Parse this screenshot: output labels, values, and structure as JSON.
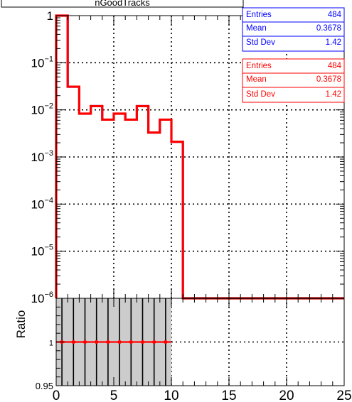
{
  "header_text": "nGoodTracks",
  "stats_boxes": [
    {
      "entries_label": "Entries",
      "entries_value": "484",
      "mean_label": "Mean",
      "mean_value": "0.3678",
      "std_label": "Std Dev",
      "std_value": "1.42",
      "color": "#0000ff"
    },
    {
      "entries_label": "Entries",
      "entries_value": "484",
      "mean_label": "Mean",
      "mean_value": "0.3678",
      "std_label": "Std Dev",
      "std_value": "1.42",
      "color": "#ff0000"
    }
  ],
  "chart_data": {
    "type": "histogram",
    "title": "nGoodTracks",
    "top_panel": {
      "yscale": "log",
      "ylim": [
        1e-06,
        1
      ],
      "xlim": [
        0,
        25
      ],
      "grid": true,
      "y_ticks": [
        {
          "value": 1,
          "label": "1"
        },
        {
          "value": 0.1,
          "label": "10^-1"
        },
        {
          "value": 0.01,
          "label": "10^-2"
        },
        {
          "value": 0.001,
          "label": "10^-3"
        },
        {
          "value": 0.0001,
          "label": "10^-4"
        },
        {
          "value": 1e-05,
          "label": "10^-5"
        },
        {
          "value": 1e-06,
          "label": "10^-6"
        }
      ],
      "bin_edges": [
        0,
        1,
        2,
        3,
        4,
        5,
        6,
        7,
        8,
        9,
        10,
        11,
        25
      ],
      "values": [
        1.0,
        0.031,
        0.0083,
        0.012,
        0.0062,
        0.0083,
        0.0062,
        0.012,
        0.0033,
        0.0062,
        0.0021,
        1e-06
      ],
      "series": [
        {
          "name": "",
          "color": "#0000ff"
        },
        {
          "name": "",
          "color": "#ff0000"
        }
      ]
    },
    "ratio_panel": {
      "ylabel": "Ratio",
      "ylim": [
        0.95,
        1.05
      ],
      "xlim": [
        0,
        25
      ],
      "y_ticks": [
        {
          "value": 0.95,
          "label": "0.95"
        },
        {
          "value": 1,
          "label": "1"
        }
      ],
      "x_ticks": [
        0,
        5,
        10,
        15,
        20,
        25
      ],
      "points_x": [
        0.5,
        1.5,
        2.5,
        3.5,
        4.5,
        5.5,
        6.5,
        7.5,
        8.5,
        9.5
      ],
      "points_y": [
        1,
        1,
        1,
        1,
        1,
        1,
        1,
        1,
        1,
        1
      ],
      "error_band": [
        0,
        10
      ],
      "point_color": "#ff0000",
      "band_color": "#cccccc"
    }
  }
}
